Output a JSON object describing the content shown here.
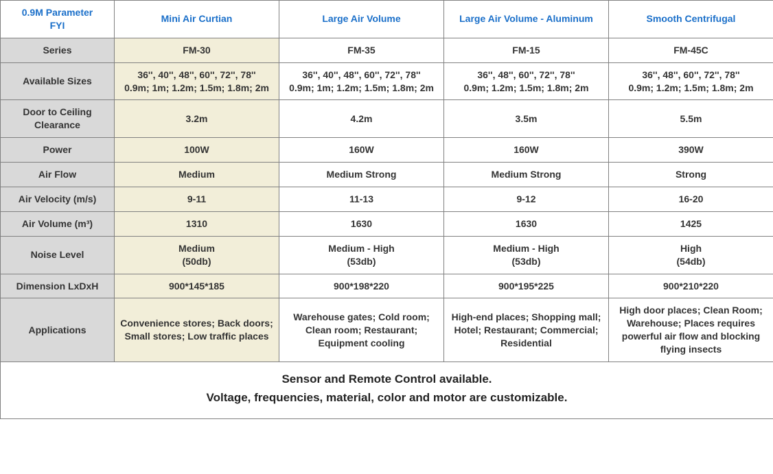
{
  "colors": {
    "header_text": "#1a6fc9",
    "row_label_bg": "#d9d9d9",
    "highlight_bg": "#f2eed9",
    "cell_bg": "#ffffff",
    "border": "#808080",
    "body_text": "#333333"
  },
  "header": {
    "corner_line1": "0.9M Parameter",
    "corner_line2": "FYI",
    "cols": [
      "Mini Air Curtian",
      "Large Air Volume",
      "Large Air Volume - Aluminum",
      "Smooth Centrifugal"
    ]
  },
  "rows": {
    "series": {
      "label": "Series",
      "vals": [
        "FM-30",
        "FM-35",
        "FM-15",
        "FM-45C"
      ]
    },
    "sizes": {
      "label": "Available Sizes",
      "line1": [
        "36'', 40'', 48'', 60'', 72'', 78''",
        "36'', 40'', 48'', 60'', 72'', 78''",
        "36'', 48'', 60'', 72'', 78''",
        "36'', 48'', 60'', 72'', 78''"
      ],
      "line2": [
        "0.9m; 1m; 1.2m; 1.5m; 1.8m; 2m",
        "0.9m; 1m; 1.2m; 1.5m; 1.8m; 2m",
        "0.9m; 1.2m; 1.5m; 1.8m; 2m",
        "0.9m; 1.2m; 1.5m; 1.8m; 2m"
      ]
    },
    "clearance": {
      "label": "Door to Ceiling Clearance",
      "vals": [
        "3.2m",
        "4.2m",
        "3.5m",
        "5.5m"
      ]
    },
    "power": {
      "label": "Power",
      "vals": [
        "100W",
        "160W",
        "160W",
        "390W"
      ]
    },
    "airflow": {
      "label": "Air Flow",
      "vals": [
        "Medium",
        "Medium Strong",
        "Medium Strong",
        "Strong"
      ]
    },
    "velocity": {
      "label": "Air Velocity (m/s)",
      "vals": [
        "9-11",
        "11-13",
        "9-12",
        "16-20"
      ]
    },
    "volume": {
      "label": "Air Volume (m³)",
      "vals": [
        "1310",
        "1630",
        "1630",
        "1425"
      ]
    },
    "noise": {
      "label": "Noise Level",
      "line1": [
        "Medium",
        "Medium - High",
        "Medium - High",
        "High"
      ],
      "line2": [
        "(50db)",
        "(53db)",
        "(53db)",
        "(54db)"
      ]
    },
    "dimension": {
      "label": "Dimension LxDxH",
      "vals": [
        "900*145*185",
        "900*198*220",
        "900*195*225",
        "900*210*220"
      ]
    },
    "applications": {
      "label": "Applications",
      "vals": [
        "Convenience stores; Back doors; Small stores; Low traffic places",
        "Warehouse gates; Cold room; Clean room; Restaurant; Equipment cooling",
        "High-end places; Shopping mall; Hotel; Restaurant; Commercial; Residential",
        "High door places; Clean Room; Warehouse; Places requires powerful air flow and blocking flying insects"
      ]
    }
  },
  "footer": {
    "line1": "Sensor and Remote Control available.",
    "line2": "Voltage, frequencies, material, color and motor are customizable."
  }
}
